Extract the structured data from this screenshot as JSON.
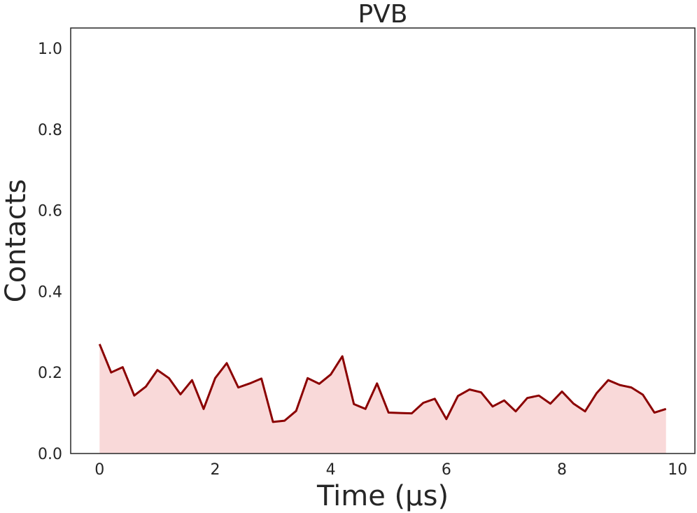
{
  "chart_data": {
    "type": "area",
    "title": "PVB",
    "xlabel": "Time (µs)",
    "ylabel": "Contacts",
    "xlim": [
      -0.5,
      10.3
    ],
    "ylim": [
      0.0,
      1.05
    ],
    "xticks": [
      0,
      2,
      4,
      6,
      8,
      10
    ],
    "yticks": [
      0.0,
      0.2,
      0.4,
      0.6,
      0.8,
      1.0
    ],
    "xtick_labels": [
      "0",
      "2",
      "4",
      "6",
      "8",
      "10"
    ],
    "ytick_labels": [
      "0.0",
      "0.2",
      "0.4",
      "0.6",
      "0.8",
      "1.0"
    ],
    "grid": false,
    "line_color": "#8b0000",
    "fill_color": "#f9d9d9",
    "x": [
      0.0,
      0.2,
      0.4,
      0.6,
      0.8,
      1.0,
      1.2,
      1.4,
      1.6,
      1.8,
      2.0,
      2.2,
      2.4,
      2.6,
      2.8,
      3.0,
      3.2,
      3.4,
      3.6,
      3.8,
      4.0,
      4.2,
      4.4,
      4.6,
      4.8,
      5.0,
      5.2,
      5.4,
      5.6,
      5.8,
      6.0,
      6.2,
      6.4,
      6.6,
      6.8,
      7.0,
      7.2,
      7.4,
      7.6,
      7.8,
      8.0,
      8.2,
      8.4,
      8.6,
      8.8,
      9.0,
      9.2,
      9.4,
      9.6,
      9.8
    ],
    "values": [
      0.27,
      0.2,
      0.213,
      0.143,
      0.165,
      0.206,
      0.186,
      0.146,
      0.181,
      0.11,
      0.186,
      0.223,
      0.163,
      0.173,
      0.185,
      0.078,
      0.081,
      0.105,
      0.186,
      0.172,
      0.195,
      0.24,
      0.122,
      0.11,
      0.173,
      0.101,
      0.1,
      0.099,
      0.125,
      0.135,
      0.085,
      0.142,
      0.158,
      0.151,
      0.116,
      0.131,
      0.104,
      0.137,
      0.143,
      0.123,
      0.153,
      0.123,
      0.104,
      0.149,
      0.181,
      0.169,
      0.163,
      0.145,
      0.101,
      0.11
    ]
  }
}
